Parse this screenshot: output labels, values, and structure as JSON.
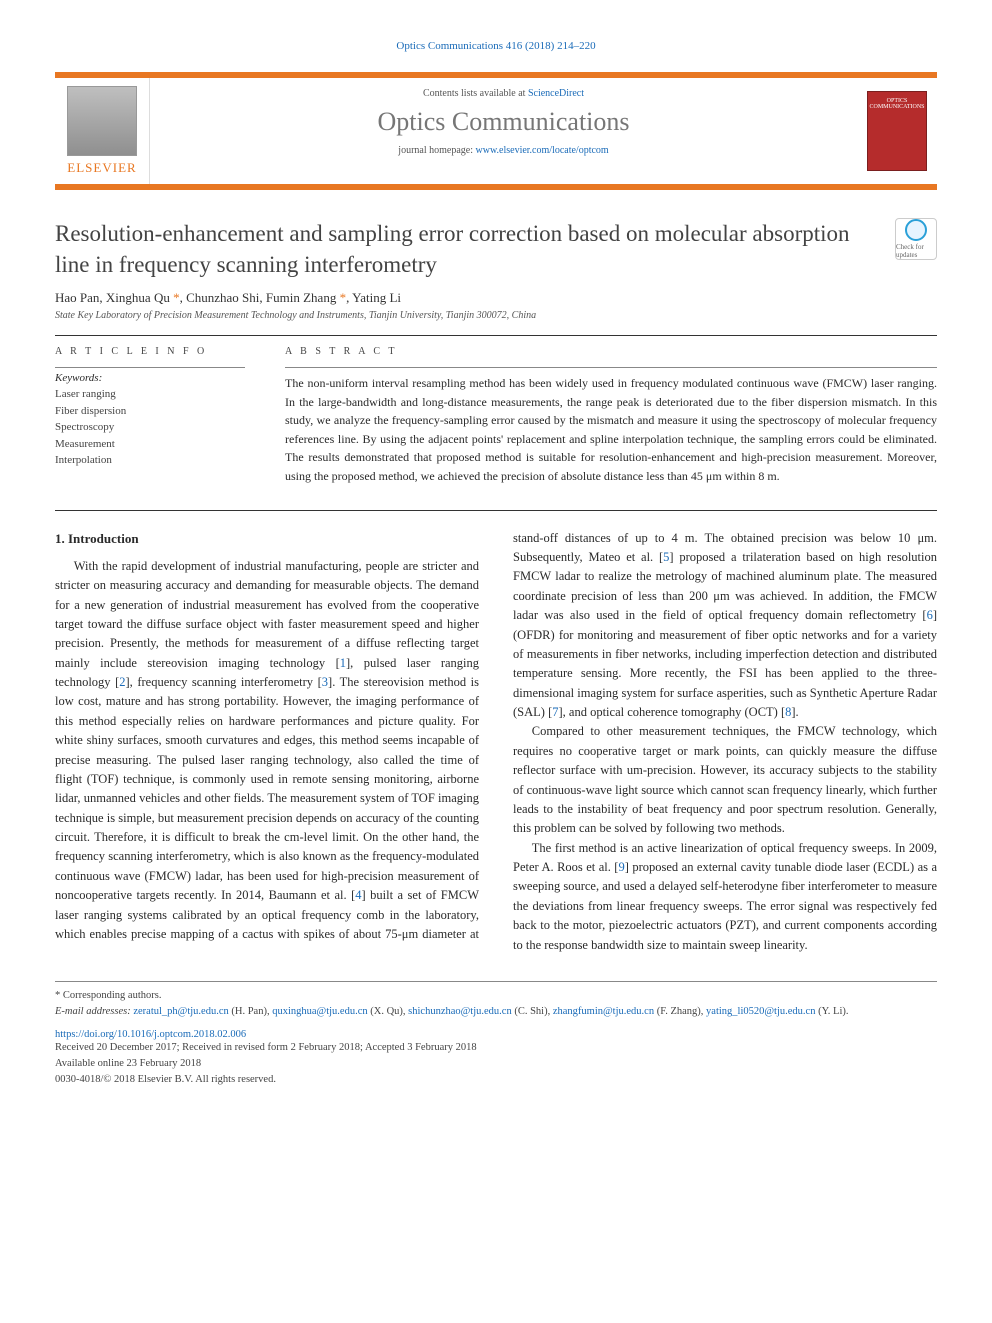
{
  "running_header": "Optics Communications 416 (2018) 214–220",
  "header": {
    "contents_prefix": "Contents lists available at ",
    "contents_link": "ScienceDirect",
    "journal_name": "Optics Communications",
    "homepage_prefix": "journal homepage: ",
    "homepage_link": "www.elsevier.com/locate/optcom",
    "publisher": "ELSEVIER",
    "cover_label": "OPTICS COMMUNICATIONS",
    "brand_color": "#e87722",
    "cover_color": "#b52c2c"
  },
  "check_badge": "Check for updates",
  "title": "Resolution-enhancement and sampling error correction based on molecular absorption line in frequency scanning interferometry",
  "authors_html": "Hao Pan, Xinghua Qu *, Chunzhao Shi, Fumin Zhang *, Yating Li",
  "affiliation": "State Key Laboratory of Precision Measurement Technology and Instruments, Tianjin University, Tianjin 300072, China",
  "article_info_label": "A R T I C L E   I N F O",
  "abstract_label": "A B S T R A C T",
  "keywords_head": "Keywords:",
  "keywords": [
    "Laser ranging",
    "Fiber dispersion",
    "Spectroscopy",
    "Measurement",
    "Interpolation"
  ],
  "abstract": "The non-uniform interval resampling method has been widely used in frequency modulated continuous wave (FMCW) laser ranging. In the large-bandwidth and long-distance measurements, the range peak is deteriorated due to the fiber dispersion mismatch. In this study, we analyze the frequency-sampling error caused by the mismatch and measure it using the spectroscopy of molecular frequency references line. By using the adjacent points' replacement and spline interpolation technique, the sampling errors could be eliminated. The results demonstrated that proposed method is suitable for resolution-enhancement and high-precision measurement. Moreover, using the proposed method, we achieved the precision of absolute distance less than 45 μm within 8 m.",
  "section_heading": "1. Introduction",
  "body_paragraphs": [
    "With the rapid development of industrial manufacturing, people are stricter and stricter on measuring accuracy and demanding for measurable objects. The demand for a new generation of industrial measurement has evolved from the cooperative target toward the diffuse surface object with faster measurement speed and higher precision. Presently, the methods for measurement of a diffuse reflecting target mainly include stereovision imaging technology [1], pulsed laser ranging technology [2], frequency scanning interferometry [3]. The stereovision method is low cost, mature and has strong portability. However, the imaging performance of this method especially relies on hardware performances and picture quality. For white shiny surfaces, smooth curvatures and edges, this method seems incapable of precise measuring. The pulsed laser ranging technology, also called the time of flight (TOF) technique, is commonly used in remote sensing monitoring, airborne lidar, unmanned vehicles and other fields. The measurement system of TOF imaging technique is simple, but measurement precision depends on accuracy of the counting circuit. Therefore, it is difficult to break the cm-level limit. On the other hand, the frequency scanning interferometry, which is also known as the frequency-modulated continuous wave (FMCW) ladar, has been used for high-precision measurement of noncooperative targets recently. In 2014, Baumann et al. [4] built a set of FMCW laser ranging systems calibrated by an optical frequency comb in the laboratory, which enables precise mapping of a cactus with spikes of about 75-μm diameter at stand-off distances of up to 4 m. The obtained precision was below 10 μm. Subsequently, Mateo et al. [5] proposed a trilateration based on high resolution FMCW ladar to realize the metrology of machined aluminum plate. The measured coordinate precision of less than 200 μm was achieved. In addition, the FMCW ladar was also used in the field of optical frequency domain reflectometry [6] (OFDR) for monitoring and measurement of fiber optic networks and for a variety of measurements in fiber networks, including imperfection detection and distributed temperature sensing. More recently, the FSI has been applied to the three-dimensional imaging system for surface asperities, such as Synthetic Aperture Radar (SAL) [7], and optical coherence tomography (OCT) [8].",
    "Compared to other measurement techniques, the FMCW technology, which requires no cooperative target or mark points, can quickly measure the diffuse reflector surface with um-precision. However, its accuracy subjects to the stability of continuous-wave light source which cannot scan frequency linearly, which further leads to the instability of beat frequency and poor spectrum resolution. Generally, this problem can be solved by following two methods.",
    "The first method is an active linearization of optical frequency sweeps. In 2009, Peter A. Roos et al. [9] proposed an external cavity tunable diode laser (ECDL) as a sweeping source, and used a delayed self-heterodyne fiber interferometer to measure the deviations from linear frequency sweeps. The error signal was respectively fed back to the motor, piezoelectric actuators (PZT), and current components according to the response bandwidth size to maintain sweep linearity."
  ],
  "refs": [
    "1",
    "2",
    "3",
    "4",
    "5",
    "6",
    "7",
    "8",
    "9"
  ],
  "footnote": {
    "corr": "* Corresponding authors.",
    "email_label": "E-mail addresses:",
    "emails": [
      {
        "addr": "zeratul_ph@tju.edu.cn",
        "who": "(H. Pan)"
      },
      {
        "addr": "quxinghua@tju.edu.cn",
        "who": "(X. Qu)"
      },
      {
        "addr": "shichunzhao@tju.edu.cn",
        "who": "(C. Shi)"
      },
      {
        "addr": "zhangfumin@tju.edu.cn",
        "who": "(F. Zhang)"
      },
      {
        "addr": "yating_li0520@tju.edu.cn",
        "who": "(Y. Li)"
      }
    ]
  },
  "doi": "https://doi.org/10.1016/j.optcom.2018.02.006",
  "dates": {
    "received": "Received 20 December 2017; Received in revised form 2 February 2018; Accepted 3 February 2018",
    "online": "Available online 23 February 2018",
    "copyright": "0030-4018/© 2018 Elsevier B.V. All rights reserved."
  },
  "link_color": "#1a6bb8",
  "body_fontsize": 12.5,
  "title_fontsize": 23,
  "journal_name_fontsize": 26
}
